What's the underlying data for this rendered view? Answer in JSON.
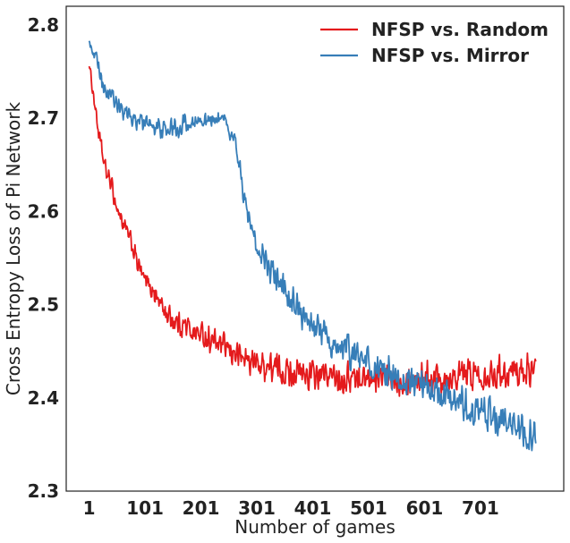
{
  "chart_data": {
    "type": "line",
    "title": "",
    "xlabel": "Number of games",
    "ylabel": "Cross Entropy Loss of Pi Network",
    "xlim": [
      -40,
      850
    ],
    "ylim": [
      2.3,
      2.82
    ],
    "x_ticks": [
      1,
      101,
      201,
      301,
      401,
      501,
      601,
      701
    ],
    "x_tick_labels": [
      "1",
      "101",
      "201",
      "301",
      "401",
      "501",
      "601",
      "701"
    ],
    "y_ticks": [
      2.3,
      2.4,
      2.5,
      2.6,
      2.7,
      2.8
    ],
    "y_tick_labels": [
      "2.3",
      "2.4",
      "2.5",
      "2.6",
      "2.7",
      "2.8"
    ],
    "grid": false,
    "legend_position": "top-right",
    "series": [
      {
        "name": "NFSP vs. Random",
        "color": "#e41a1c",
        "x": [
          1,
          10,
          20,
          30,
          40,
          50,
          60,
          70,
          80,
          90,
          100,
          110,
          120,
          130,
          140,
          150,
          160,
          170,
          180,
          190,
          200,
          220,
          240,
          260,
          280,
          300,
          330,
          360,
          400,
          450,
          500,
          550,
          600,
          650,
          700,
          750,
          800
        ],
        "values": [
          2.758,
          2.72,
          2.675,
          2.645,
          2.63,
          2.605,
          2.59,
          2.575,
          2.56,
          2.54,
          2.525,
          2.52,
          2.51,
          2.5,
          2.49,
          2.485,
          2.48,
          2.478,
          2.475,
          2.47,
          2.468,
          2.462,
          2.455,
          2.448,
          2.442,
          2.437,
          2.432,
          2.428,
          2.424,
          2.422,
          2.421,
          2.421,
          2.422,
          2.424,
          2.426,
          2.428,
          2.43
        ],
        "noise": [
          0.005,
          0.01,
          0.012,
          0.012,
          0.012,
          0.012,
          0.013,
          0.013,
          0.014,
          0.014,
          0.014,
          0.015,
          0.015,
          0.015,
          0.015,
          0.016,
          0.016,
          0.016,
          0.016,
          0.016,
          0.017,
          0.017,
          0.017,
          0.018,
          0.018,
          0.018,
          0.02,
          0.02,
          0.02,
          0.02,
          0.02,
          0.02,
          0.02,
          0.02,
          0.02,
          0.02,
          0.02
        ]
      },
      {
        "name": "NFSP vs. Mirror",
        "color": "#377eb8",
        "x": [
          1,
          10,
          20,
          30,
          40,
          50,
          60,
          70,
          80,
          90,
          100,
          120,
          140,
          160,
          180,
          200,
          220,
          240,
          250,
          260,
          265,
          270,
          275,
          280,
          290,
          300,
          320,
          340,
          360,
          380,
          400,
          420,
          440,
          460,
          480,
          500,
          540,
          580,
          620,
          660,
          700,
          740,
          770,
          800
        ],
        "values": [
          2.782,
          2.77,
          2.75,
          2.73,
          2.72,
          2.715,
          2.71,
          2.705,
          2.7,
          2.695,
          2.693,
          2.69,
          2.688,
          2.69,
          2.695,
          2.698,
          2.7,
          2.695,
          2.69,
          2.68,
          2.665,
          2.648,
          2.63,
          2.61,
          2.585,
          2.565,
          2.545,
          2.525,
          2.505,
          2.49,
          2.478,
          2.468,
          2.458,
          2.45,
          2.443,
          2.436,
          2.428,
          2.418,
          2.405,
          2.395,
          2.385,
          2.375,
          2.37,
          2.362
        ],
        "noise": [
          0.006,
          0.01,
          0.012,
          0.012,
          0.012,
          0.012,
          0.012,
          0.012,
          0.012,
          0.012,
          0.012,
          0.012,
          0.013,
          0.013,
          0.013,
          0.013,
          0.013,
          0.013,
          0.012,
          0.012,
          0.012,
          0.012,
          0.013,
          0.014,
          0.015,
          0.016,
          0.018,
          0.02,
          0.02,
          0.02,
          0.02,
          0.02,
          0.02,
          0.02,
          0.022,
          0.022,
          0.022,
          0.022,
          0.022,
          0.022,
          0.024,
          0.024,
          0.024,
          0.024
        ]
      }
    ]
  }
}
